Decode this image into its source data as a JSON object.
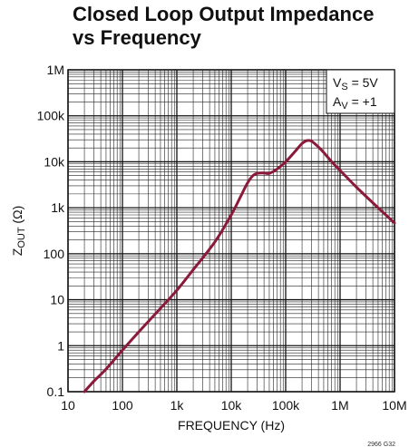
{
  "chart_data": {
    "type": "line",
    "title_lines": [
      "Closed Loop Output Impedance",
      "vs Frequency"
    ],
    "xlabel": "FREQUENCY (Hz)",
    "ylabel": {
      "main": "Z",
      "sub": "OUT",
      "unit": " (Ω)"
    },
    "x_scale": "log",
    "y_scale": "log",
    "xlim": [
      10,
      10000000
    ],
    "ylim": [
      0.1,
      1000000
    ],
    "x_ticks": [
      {
        "value": 10,
        "label": "10"
      },
      {
        "value": 100,
        "label": "100"
      },
      {
        "value": 1000,
        "label": "1k"
      },
      {
        "value": 10000,
        "label": "10k"
      },
      {
        "value": 100000,
        "label": "100k"
      },
      {
        "value": 1000000,
        "label": "1M"
      },
      {
        "value": 10000000,
        "label": "10M"
      }
    ],
    "y_ticks": [
      {
        "value": 0.1,
        "label": "0.1"
      },
      {
        "value": 1,
        "label": "1"
      },
      {
        "value": 10,
        "label": "10"
      },
      {
        "value": 100,
        "label": "100"
      },
      {
        "value": 1000,
        "label": "1k"
      },
      {
        "value": 10000,
        "label": "10k"
      },
      {
        "value": 100000,
        "label": "100k"
      },
      {
        "value": 1000000,
        "label": "1M"
      }
    ],
    "grid": true,
    "legend_position": "top-right",
    "annotations": [
      {
        "main": "V",
        "sub": "S",
        "rest": " = 5V"
      },
      {
        "main": "A",
        "sub": "V",
        "rest": " = +1"
      }
    ],
    "series": [
      {
        "color": "#8b1a3a",
        "x": [
          20,
          30,
          50,
          100,
          200,
          500,
          1000,
          2000,
          5000,
          10000,
          15000,
          20000,
          25000,
          30000,
          40000,
          50000,
          70000,
          100000,
          150000,
          200000,
          250000,
          300000,
          400000,
          500000,
          700000,
          1000000,
          2000000,
          5000000,
          10000000
        ],
        "y": [
          0.1,
          0.17,
          0.31,
          0.8,
          2.0,
          6.5,
          16,
          45,
          180,
          700,
          1800,
          3500,
          5000,
          5600,
          5700,
          5600,
          7000,
          10000,
          17000,
          25000,
          29000,
          28000,
          21000,
          16000,
          10000,
          6500,
          2800,
          1000,
          470
        ]
      }
    ],
    "figure_id": "2966 G32"
  }
}
